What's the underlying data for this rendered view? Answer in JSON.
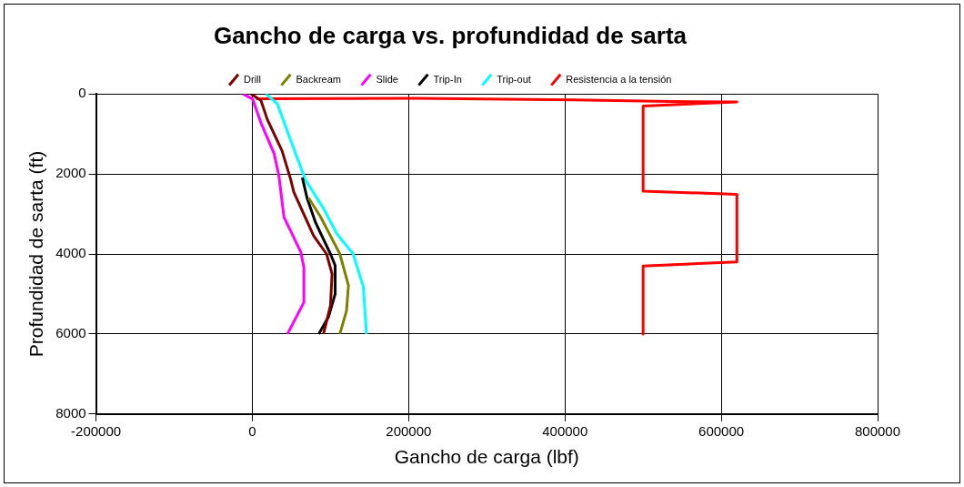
{
  "chart_data": {
    "type": "line",
    "title": "Gancho de carga vs. profundidad de sarta",
    "xlabel": "Gancho de carga (lbf)",
    "ylabel": "Profundidad de sarta (ft)",
    "xlim": [
      -200000,
      800000
    ],
    "xticks": [
      -200000,
      0,
      200000,
      400000,
      600000,
      800000
    ],
    "ylim": [
      8000,
      0
    ],
    "yticks": [
      0,
      2000,
      4000,
      6000,
      8000
    ],
    "grid": true,
    "legend": "top",
    "marker": "none",
    "line_style": "solid",
    "series": [
      {
        "name": "Drill",
        "color": "#800000",
        "x": [
          -1700,
          11000,
          19000,
          38000,
          49000,
          53000,
          78500,
          95000,
          102000,
          100000,
          91000
        ],
        "values": [
          0,
          160,
          630,
          1420,
          2130,
          2450,
          3550,
          4000,
          4500,
          5290,
          6000
        ]
      },
      {
        "name": "Backream",
        "color": "#808000",
        "x": [
          72000,
          87000,
          112000,
          123000,
          120500,
          112000
        ],
        "values": [
          2600,
          3060,
          4000,
          4790,
          5420,
          6000
        ]
      },
      {
        "name": "Slide",
        "color": "#ff00ff",
        "x": [
          -12000,
          400,
          11000,
          28000,
          34000,
          40500,
          62000,
          66000,
          66000,
          45000
        ],
        "values": [
          0,
          130,
          720,
          1500,
          2050,
          3080,
          3950,
          4340,
          5210,
          6000
        ]
      },
      {
        "name": "Trip-In",
        "color": "#000000",
        "x": [
          64000,
          70000,
          81000,
          100000,
          106000,
          106000,
          97500,
          85000
        ],
        "values": [
          2090,
          2600,
          3220,
          4000,
          4290,
          5000,
          5570,
          6000
        ]
      },
      {
        "name": "Trip-out",
        "color": "#00ffff",
        "x": [
          17300,
          32000,
          53000,
          68000,
          91000,
          108000,
          129000,
          142000,
          146000
        ],
        "values": [
          0,
          250,
          1365,
          2150,
          2860,
          3490,
          4000,
          4820,
          6000
        ]
      },
      {
        "name": "Resistencia a la tensión",
        "color": "#ff0000",
        "x": [
          5000,
          207000,
          412000,
          537000,
          620000,
          500000,
          500000,
          620000,
          620000,
          500000,
          500000
        ],
        "values": [
          120,
          110,
          150,
          190,
          200,
          300,
          2430,
          2510,
          4200,
          4300,
          6000
        ]
      }
    ]
  }
}
